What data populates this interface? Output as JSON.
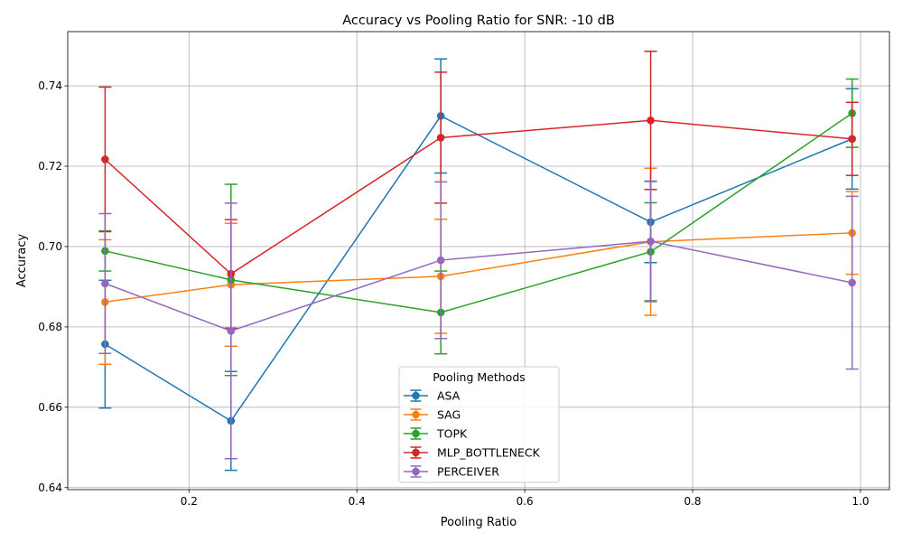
{
  "chart_data": {
    "type": "line",
    "title": "Accuracy vs Pooling Ratio for SNR: -10 dB",
    "xlabel": "Pooling Ratio",
    "ylabel": "Accuracy",
    "x": [
      0.1,
      0.25,
      0.5,
      0.75,
      0.99
    ],
    "xlim": [
      0.0555,
      1.0345
    ],
    "ylim": [
      0.6395,
      0.7535
    ],
    "xticks": [
      0.2,
      0.4,
      0.6,
      0.8,
      1.0
    ],
    "xtick_labels": [
      "0.2",
      "0.4",
      "0.6",
      "0.8",
      "1.0"
    ],
    "yticks": [
      0.64,
      0.66,
      0.68,
      0.7,
      0.72,
      0.74
    ],
    "ytick_labels": [
      "0.64",
      "0.66",
      "0.68",
      "0.70",
      "0.72",
      "0.74"
    ],
    "grid": true,
    "legend": {
      "title": "Pooling Methods",
      "placement": "bottom-center"
    },
    "series": [
      {
        "name": "ASA",
        "color": "#1f77b4",
        "values": [
          0.6757,
          0.6566,
          0.7325,
          0.7061,
          0.7268
        ],
        "errors": [
          0.0159,
          0.0123,
          0.0142,
          0.0101,
          0.0125
        ]
      },
      {
        "name": "SAG",
        "color": "#ff7f0e",
        "values": [
          0.6862,
          0.6905,
          0.6926,
          0.7012,
          0.7034
        ],
        "errors": [
          0.0155,
          0.0153,
          0.0142,
          0.0183,
          0.0103
        ]
      },
      {
        "name": "TOPK",
        "color": "#2ca02c",
        "values": [
          0.6989,
          0.6917,
          0.6836,
          0.6987,
          0.7332
        ],
        "errors": [
          0.005,
          0.0238,
          0.0103,
          0.0122,
          0.0085
        ]
      },
      {
        "name": "MLP_BOTTLENECK",
        "color": "#d62728",
        "values": [
          0.7217,
          0.6932,
          0.7271,
          0.7314,
          0.7268
        ],
        "errors": [
          0.018,
          0.0135,
          0.0163,
          0.0172,
          0.0091
        ]
      },
      {
        "name": "PERCEIVER",
        "color": "#9467bd",
        "values": [
          0.6908,
          0.679,
          0.6966,
          0.7013,
          0.691
        ],
        "errors": [
          0.0174,
          0.0318,
          0.0195,
          0.015,
          0.0215
        ]
      }
    ]
  }
}
